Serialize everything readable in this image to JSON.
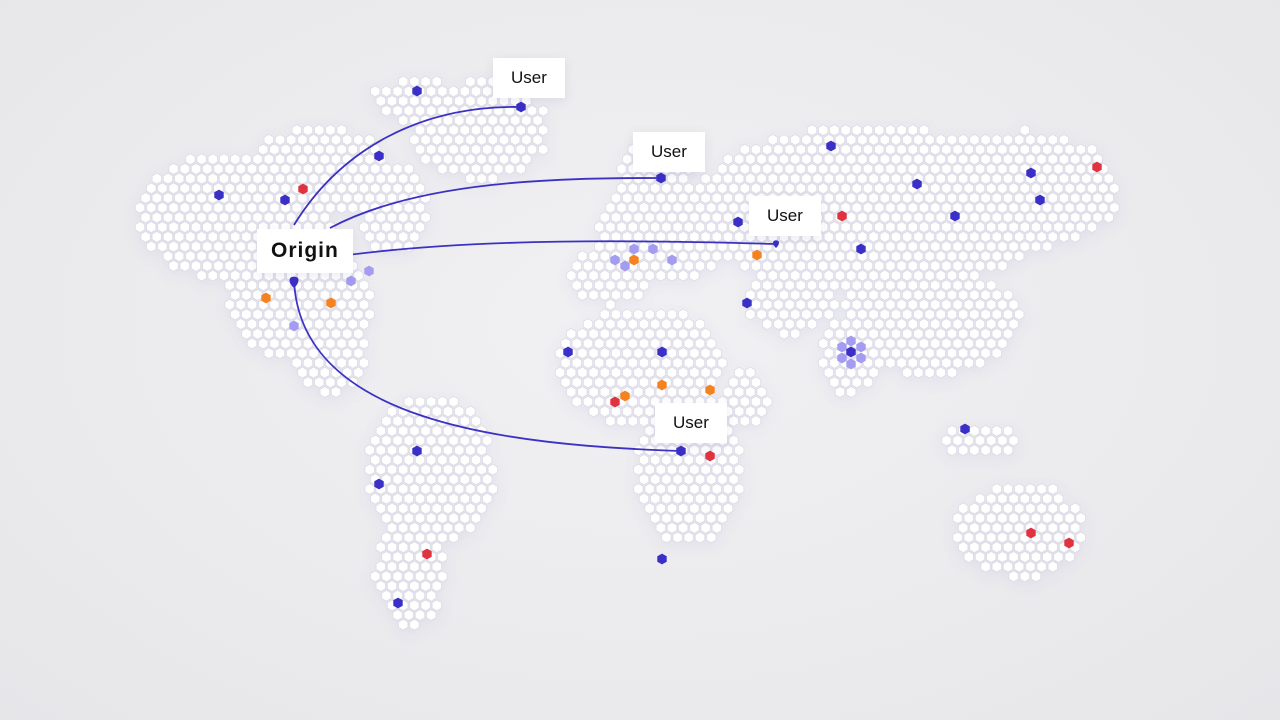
{
  "labels": {
    "origin": "Origin",
    "user": "User"
  },
  "colors": {
    "background": "#ececed",
    "hexagon_fill": "#ffffff",
    "hexagon_stroke": "#dcdbe6",
    "route_line": "#3b32c4",
    "marker_blue": "#3a2fc6",
    "marker_light_blue": "#a39cf0",
    "marker_orange": "#f5821f",
    "marker_red": "#e0323f"
  },
  "icons": {
    "origin_marker": "map-pin-icon",
    "destination_marker": "map-pin-icon"
  }
}
